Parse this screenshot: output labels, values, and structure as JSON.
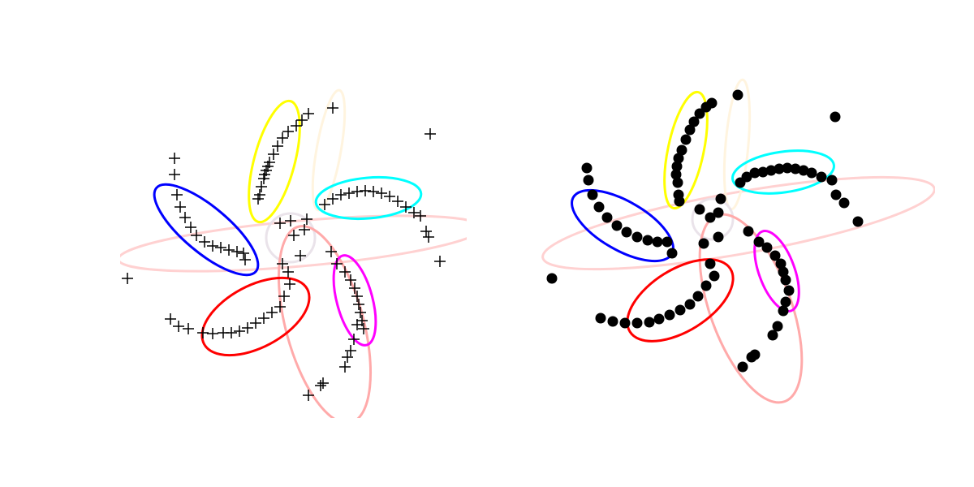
{
  "chart_data": [
    {
      "type": "scatter",
      "marker": "+",
      "color": "#000000",
      "axis": false,
      "xlim": [
        148,
        575
      ],
      "ylim": [
        85,
        505
      ],
      "x": [
        380,
        372,
        365,
        355,
        348,
        342,
        337,
        332,
        328,
        325,
        322,
        320,
        318,
        330,
        326,
        410,
        400,
        410,
        420,
        430,
        440,
        450,
        460,
        470,
        480,
        490,
        500,
        510,
        518,
        525,
        528,
        542,
        530,
        215,
        215,
        218,
        222,
        228,
        235,
        242,
        252,
        262,
        272,
        282,
        292,
        300,
        302,
        345,
        358,
        378,
        375,
        362,
        370,
        348,
        157,
        355,
        357,
        350,
        345,
        335,
        325,
        315,
        305,
        295,
        285,
        275,
        262,
        250,
        232,
        220,
        210,
        408,
        415,
        425,
        432,
        437,
        440,
        442,
        444,
        446,
        448,
        440,
        436,
        432,
        428,
        425,
        398,
        395,
        380
      ],
      "y": [
        460,
        452,
        445,
        438,
        430,
        420,
        410,
        400,
        390,
        380,
        370,
        360,
        355,
        395,
        385,
        467,
        348,
        355,
        360,
        362,
        364,
        365,
        364,
        362,
        358,
        352,
        345,
        338,
        334,
        315,
        308,
        278,
        435,
        405,
        385,
        360,
        345,
        332,
        320,
        310,
        302,
        297,
        295,
        292,
        290,
        288,
        280,
        325,
        328,
        330,
        317,
        310,
        285,
        275,
        257,
        265,
        250,
        235,
        222,
        215,
        208,
        202,
        196,
        192,
        190,
        190,
        189,
        190,
        195,
        198,
        207,
        290,
        275,
        265,
        255,
        245,
        235,
        225,
        215,
        205,
        195,
        200,
        182,
        168,
        160,
        148,
        128,
        125,
        113
      ],
      "ellipses": [
        {
          "cx": 370,
          "cy": 300,
          "width": 450,
          "height": 56,
          "angle": 5,
          "color": "#ffcccc",
          "alpha": 0.9
        },
        {
          "cx": 405,
          "cy": 415,
          "width": 30,
          "height": 150,
          "angle": -10,
          "color": "#fff3dc",
          "alpha": 0.9
        },
        {
          "cx": 358,
          "cy": 307,
          "width": 60,
          "height": 60,
          "angle": 0,
          "color": "#e8e0e8",
          "alpha": 0.9
        },
        {
          "cx": 400,
          "cy": 200,
          "width": 96,
          "height": 250,
          "angle": 15,
          "color": "#ffaaaa",
          "alpha": 1
        },
        {
          "cx": 338,
          "cy": 401,
          "width": 50,
          "height": 154,
          "angle": -15,
          "color": "#ffff00",
          "alpha": 1
        },
        {
          "cx": 454,
          "cy": 356,
          "width": 130,
          "height": 50,
          "angle": 5,
          "color": "#00ffff",
          "alpha": 1
        },
        {
          "cx": 254,
          "cy": 317,
          "width": 160,
          "height": 56,
          "angle": -40,
          "color": "#0000ff",
          "alpha": 1
        },
        {
          "cx": 315,
          "cy": 210,
          "width": 144,
          "height": 76,
          "angle": 28,
          "color": "#ff0000",
          "alpha": 1
        },
        {
          "cx": 437,
          "cy": 230,
          "width": 44,
          "height": 114,
          "angle": 15,
          "color": "#ff00ff",
          "alpha": 1
        }
      ]
    },
    {
      "type": "scatter",
      "marker": "o",
      "color": "#000000",
      "axis": false,
      "xlim": [
        665,
        1152
      ],
      "ylim": [
        95,
        505
      ],
      "x": [
        877,
        870,
        862,
        855,
        850,
        845,
        840,
        836,
        834,
        833,
        835,
        836,
        837,
        909,
        912,
        920,
        930,
        940,
        950,
        960,
        970,
        980,
        990,
        1000,
        1012,
        1025,
        1030,
        1040,
        1057,
        1029,
        723,
        725,
        730,
        738,
        748,
        760,
        772,
        785,
        798,
        810,
        822,
        828,
        680,
        862,
        875,
        888,
        885,
        885,
        867,
        922,
        875,
        880,
        870,
        860,
        850,
        838,
        825,
        812,
        800,
        785,
        770,
        755,
        740,
        935,
        945,
        955,
        962,
        965,
        968,
        972,
        968,
        965,
        958,
        952,
        930,
        926,
        915
      ],
      "y": [
        473,
        468,
        460,
        450,
        440,
        428,
        415,
        405,
        395,
        385,
        375,
        360,
        352,
        483,
        375,
        382,
        387,
        388,
        390,
        392,
        393,
        392,
        390,
        387,
        382,
        378,
        360,
        350,
        327,
        456,
        393,
        378,
        360,
        345,
        332,
        322,
        314,
        308,
        304,
        302,
        302,
        288,
        257,
        342,
        332,
        355,
        338,
        308,
        300,
        315,
        275,
        260,
        248,
        235,
        225,
        218,
        212,
        207,
        203,
        202,
        202,
        204,
        208,
        302,
        295,
        285,
        275,
        265,
        255,
        242,
        228,
        217,
        198,
        187,
        163,
        160,
        148
      ],
      "ellipses": [
        {
          "cx": 910,
          "cy": 325,
          "width": 490,
          "height": 76,
          "angle": 10,
          "color": "#ffcccc",
          "alpha": 0.9
        },
        {
          "cx": 908,
          "cy": 422,
          "width": 28,
          "height": 160,
          "angle": -5,
          "color": "#fff3dc",
          "alpha": 0.9
        },
        {
          "cx": 878,
          "cy": 330,
          "width": 50,
          "height": 50,
          "angle": 0,
          "color": "#e8e0e8",
          "alpha": 0.9
        },
        {
          "cx": 925,
          "cy": 220,
          "width": 100,
          "height": 244,
          "angle": 20,
          "color": "#ffaaaa",
          "alpha": 1
        },
        {
          "cx": 845,
          "cy": 415,
          "width": 44,
          "height": 146,
          "angle": -12,
          "color": "#ffff00",
          "alpha": 1
        },
        {
          "cx": 965,
          "cy": 388,
          "width": 126,
          "height": 50,
          "angle": 8,
          "color": "#00ffff",
          "alpha": 1
        },
        {
          "cx": 767,
          "cy": 322,
          "width": 140,
          "height": 60,
          "angle": -30,
          "color": "#0000ff",
          "alpha": 1
        },
        {
          "cx": 838,
          "cy": 230,
          "width": 146,
          "height": 76,
          "angle": 32,
          "color": "#ff0000",
          "alpha": 1
        },
        {
          "cx": 957,
          "cy": 266,
          "width": 44,
          "height": 104,
          "angle": 20,
          "color": "#ff00ff",
          "alpha": 1
        }
      ]
    }
  ]
}
